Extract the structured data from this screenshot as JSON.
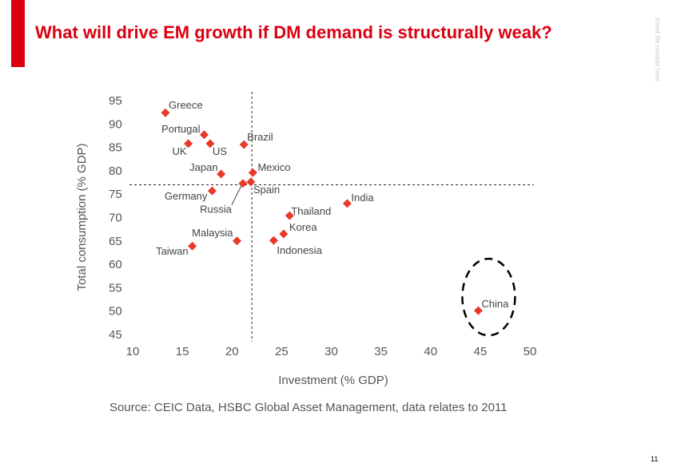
{
  "slide": {
    "title": "What will drive EM growth if DM demand is structurally weak?",
    "side_note": "Insert file number here",
    "page_number": "11",
    "accent_color": "#db0011"
  },
  "chart_data": {
    "type": "scatter",
    "xlabel": "Investment (% GDP)",
    "ylabel": "Total consumption (% GDP)",
    "xlim": [
      10,
      50
    ],
    "ylim": [
      45,
      95
    ],
    "xticks": [
      10,
      15,
      20,
      25,
      30,
      35,
      40,
      45,
      50
    ],
    "yticks": [
      95,
      90,
      85,
      80,
      75,
      70,
      65,
      60,
      55,
      50,
      45
    ],
    "grid": false,
    "reference_lines": {
      "x": 22,
      "y": 77
    },
    "marker_color": "#e8392b",
    "points": [
      {
        "label": "Greece",
        "x": 13.3,
        "y": 92.4
      },
      {
        "label": "Portugal",
        "x": 17.2,
        "y": 87.7
      },
      {
        "label": "UK",
        "x": 15.6,
        "y": 85.8
      },
      {
        "label": "US",
        "x": 17.8,
        "y": 85.8
      },
      {
        "label": "Brazil",
        "x": 21.2,
        "y": 85.6
      },
      {
        "label": "Japan",
        "x": 18.9,
        "y": 79.3
      },
      {
        "label": "Mexico",
        "x": 22.1,
        "y": 79.6
      },
      {
        "label": "Spain",
        "x": 21.9,
        "y": 77.6
      },
      {
        "label": "Russia",
        "x": 21.1,
        "y": 77.3
      },
      {
        "label": "Germany",
        "x": 18.0,
        "y": 75.7
      },
      {
        "label": "India",
        "x": 31.6,
        "y": 73.0
      },
      {
        "label": "Thailand",
        "x": 25.8,
        "y": 70.4
      },
      {
        "label": "Korea",
        "x": 25.2,
        "y": 66.5
      },
      {
        "label": "Indonesia",
        "x": 24.2,
        "y": 65.1
      },
      {
        "label": "Malaysia",
        "x": 20.5,
        "y": 65.0
      },
      {
        "label": "Taiwan",
        "x": 16.0,
        "y": 63.9
      },
      {
        "label": "China",
        "x": 44.8,
        "y": 50.1
      }
    ],
    "highlight": "China",
    "source": "Source: CEIC Data, HSBC Global Asset Management, data relates to 2011"
  }
}
